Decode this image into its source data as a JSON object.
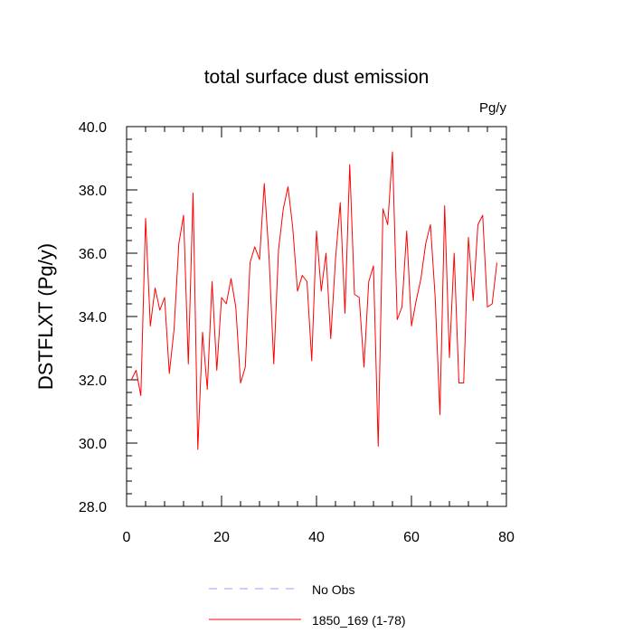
{
  "chart_data": {
    "type": "line",
    "title": "total surface dust emission",
    "units_label": "Pg/y",
    "xlabel": "",
    "ylabel": "DSTFLXT  (Pg/y)",
    "xlim": [
      0,
      80
    ],
    "ylim": [
      28,
      40
    ],
    "x_ticks": [
      0,
      20,
      40,
      60,
      80
    ],
    "x_tick_labels": [
      "0",
      "20",
      "40",
      "60",
      "80"
    ],
    "y_ticks": [
      28,
      30,
      32,
      34,
      36,
      38,
      40
    ],
    "y_tick_labels": [
      "28.0",
      "30.0",
      "32.0",
      "34.0",
      "36.0",
      "38.0",
      "40.0"
    ],
    "grid": false,
    "legend_position": "bottom-center",
    "series": [
      {
        "name": "1850_169 (1-78)",
        "color": "#ff0000",
        "line_style": "solid",
        "x": [
          1,
          2,
          3,
          4,
          5,
          6,
          7,
          8,
          9,
          10,
          11,
          12,
          13,
          14,
          15,
          16,
          17,
          18,
          19,
          20,
          21,
          22,
          23,
          24,
          25,
          26,
          27,
          28,
          29,
          30,
          31,
          32,
          33,
          34,
          35,
          36,
          37,
          38,
          39,
          40,
          41,
          42,
          43,
          44,
          45,
          46,
          47,
          48,
          49,
          50,
          51,
          52,
          53,
          54,
          55,
          56,
          57,
          58,
          59,
          60,
          61,
          62,
          63,
          64,
          65,
          66,
          67,
          68,
          69,
          70,
          71,
          72,
          73,
          74,
          75,
          76,
          77,
          78
        ],
        "values": [
          32.0,
          32.3,
          31.5,
          37.1,
          33.7,
          34.9,
          34.2,
          34.6,
          32.2,
          33.6,
          36.3,
          37.2,
          32.5,
          37.9,
          29.8,
          33.5,
          31.7,
          35.1,
          32.3,
          34.6,
          34.4,
          35.2,
          34.3,
          31.9,
          32.4,
          35.7,
          36.2,
          35.8,
          38.2,
          35.9,
          32.5,
          36.1,
          37.4,
          38.1,
          36.8,
          34.8,
          35.3,
          35.1,
          32.6,
          36.7,
          34.8,
          36.0,
          33.3,
          35.8,
          37.6,
          34.1,
          38.8,
          34.7,
          34.6,
          32.4,
          35.1,
          35.6,
          29.9,
          37.4,
          36.9,
          39.2,
          33.9,
          34.3,
          36.7,
          33.7,
          34.5,
          35.2,
          36.3,
          36.9,
          34.6,
          30.9,
          37.5,
          32.7,
          36.0,
          31.9,
          31.9,
          36.5,
          34.5,
          36.9,
          37.2,
          34.3,
          34.4,
          35.7
        ]
      },
      {
        "name": "No Obs",
        "color": "#9999ff",
        "line_style": "dashed",
        "x": [],
        "values": []
      }
    ]
  }
}
